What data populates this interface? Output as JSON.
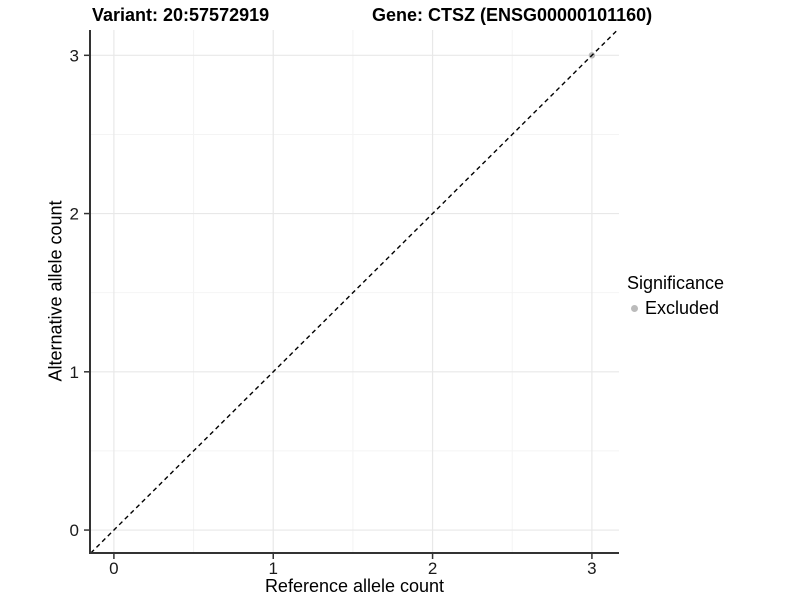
{
  "titles": {
    "variant": "Variant: 20:57572919",
    "gene": "Gene: CTSZ (ENSG00000101160)"
  },
  "chart_data": {
    "type": "scatter",
    "xlabel": "Reference allele count",
    "ylabel": "Alternative allele count",
    "xlim": [
      -0.15,
      3.17
    ],
    "ylim": [
      -0.145,
      3.16
    ],
    "x_ticks": [
      0,
      1,
      2,
      3
    ],
    "y_ticks": [
      0,
      1,
      2,
      3
    ],
    "x_minor_gridlines": [
      0.5,
      1.5,
      2.5
    ],
    "y_minor_gridlines": [
      0.5,
      1.5,
      2.5
    ],
    "grid": "major+minor",
    "series": [
      {
        "name": "Excluded",
        "color": "#bbbbbb",
        "points": [
          {
            "x": 3,
            "y": 3
          }
        ]
      }
    ],
    "reference_line": {
      "type": "identity",
      "equation": "y = x",
      "style": "dashed",
      "color": "#000000"
    },
    "legend": {
      "title": "Significance",
      "position": "right",
      "items": [
        {
          "label": "Excluded",
          "color": "#bbbbbb",
          "marker": "circle"
        }
      ]
    }
  },
  "colors": {
    "background": "#ffffff",
    "grid_major": "#e8e8e8",
    "grid_minor": "#f4f4f4",
    "axis_line": "#333333",
    "tick_mark": "#333333",
    "text": "#000000"
  }
}
